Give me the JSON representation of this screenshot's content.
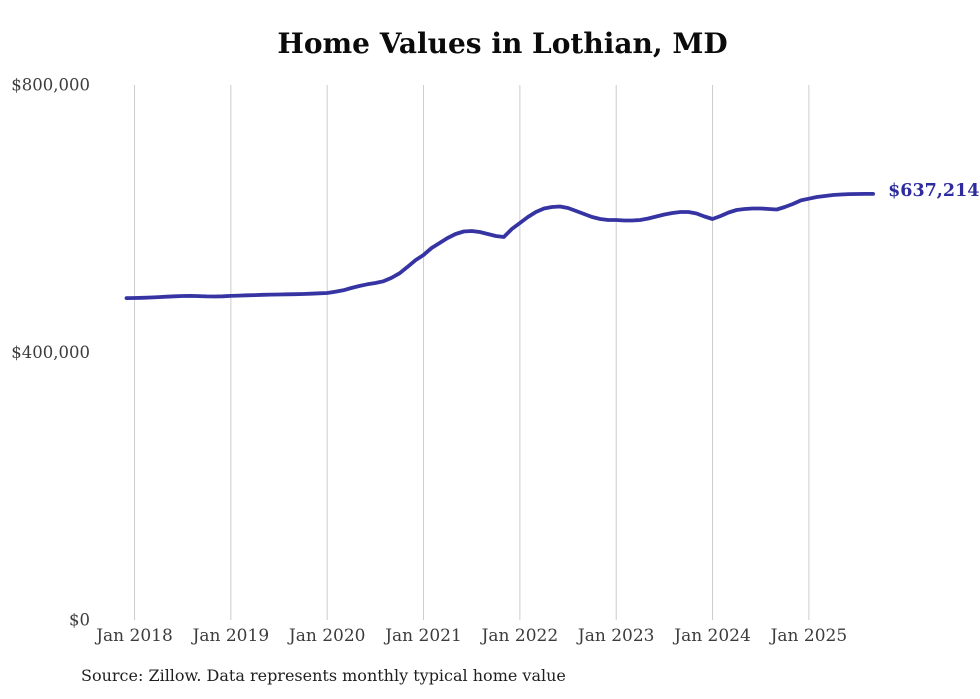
{
  "page": {
    "title": "Home Values in Lothian, MD",
    "source_note": "Source: Zillow. Data represents monthly typical home value",
    "end_value_label": "$637,214"
  },
  "colors": {
    "line": "#3634a3",
    "end_label": "#2d2b9e",
    "grid": "#cccccc",
    "axis_label": "#3c3c3c",
    "title": "#0b0b0b",
    "source": "#1f1f1f",
    "background": "#ffffff"
  },
  "chart_data": {
    "type": "line",
    "title": "Home Values in Lothian, MD",
    "xlabel": "",
    "ylabel": "",
    "ylim": [
      0,
      800000
    ],
    "grid": "vertical-only",
    "legend": "none",
    "y_ticks": [
      {
        "value": 0,
        "label": "$0"
      },
      {
        "value": 400000,
        "label": "$400,000"
      },
      {
        "value": 800000,
        "label": "$800,000"
      }
    ],
    "x_ticks": [
      "Jan 2018",
      "Jan 2019",
      "Jan 2020",
      "Jan 2021",
      "Jan 2022",
      "Jan 2023",
      "Jan 2024",
      "Jan 2025"
    ],
    "end_value": 637214,
    "series": [
      {
        "name": "Monthly typical home value",
        "unit": "USD",
        "months": [
          "2017-12",
          "2018-01",
          "2018-02",
          "2018-03",
          "2018-04",
          "2018-05",
          "2018-06",
          "2018-07",
          "2018-08",
          "2018-09",
          "2018-10",
          "2018-11",
          "2018-12",
          "2019-01",
          "2019-02",
          "2019-03",
          "2019-04",
          "2019-05",
          "2019-06",
          "2019-07",
          "2019-08",
          "2019-09",
          "2019-10",
          "2019-11",
          "2019-12",
          "2020-01",
          "2020-02",
          "2020-03",
          "2020-04",
          "2020-05",
          "2020-06",
          "2020-07",
          "2020-08",
          "2020-09",
          "2020-10",
          "2020-11",
          "2020-12",
          "2021-01",
          "2021-02",
          "2021-03",
          "2021-04",
          "2021-05",
          "2021-06",
          "2021-07",
          "2021-08",
          "2021-09",
          "2021-10",
          "2021-11",
          "2021-12",
          "2022-01",
          "2022-02",
          "2022-03",
          "2022-04",
          "2022-05",
          "2022-06",
          "2022-07",
          "2022-08",
          "2022-09",
          "2022-10",
          "2022-11",
          "2022-12",
          "2023-01",
          "2023-02",
          "2023-03",
          "2023-04",
          "2023-05",
          "2023-06",
          "2023-07",
          "2023-08",
          "2023-09",
          "2023-10",
          "2023-11",
          "2023-12",
          "2024-01",
          "2024-02",
          "2024-03",
          "2024-04",
          "2024-05",
          "2024-06",
          "2024-07",
          "2024-08",
          "2024-09",
          "2024-10",
          "2024-11",
          "2024-12",
          "2025-01",
          "2025-02",
          "2025-03",
          "2025-04",
          "2025-05",
          "2025-06",
          "2025-07",
          "2025-08",
          "2025-09"
        ],
        "values": [
          481300,
          481500,
          481800,
          482300,
          482900,
          483500,
          484100,
          484500,
          484600,
          484300,
          483900,
          483700,
          484100,
          484600,
          485100,
          485500,
          485900,
          486300,
          486600,
          486800,
          487000,
          487200,
          487500,
          488000,
          488500,
          489000,
          490800,
          493000,
          496500,
          499500,
          502000,
          504000,
          506500,
          511500,
          518500,
          528000,
          538000,
          545800,
          556200,
          563700,
          571200,
          577200,
          580900,
          581700,
          580200,
          577200,
          574200,
          572700,
          584600,
          593700,
          602600,
          610100,
          615300,
          617600,
          618300,
          616100,
          611600,
          607100,
          602600,
          599600,
          598100,
          598100,
          597400,
          597400,
          598100,
          600300,
          603300,
          606300,
          608600,
          610100,
          610100,
          607800,
          603300,
          599600,
          604100,
          609300,
          613100,
          614600,
          615300,
          615300,
          614600,
          613800,
          617600,
          622100,
          627400,
          630000,
          632500,
          634000,
          635500,
          636300,
          636800,
          637000,
          637100,
          637214
        ]
      }
    ]
  }
}
